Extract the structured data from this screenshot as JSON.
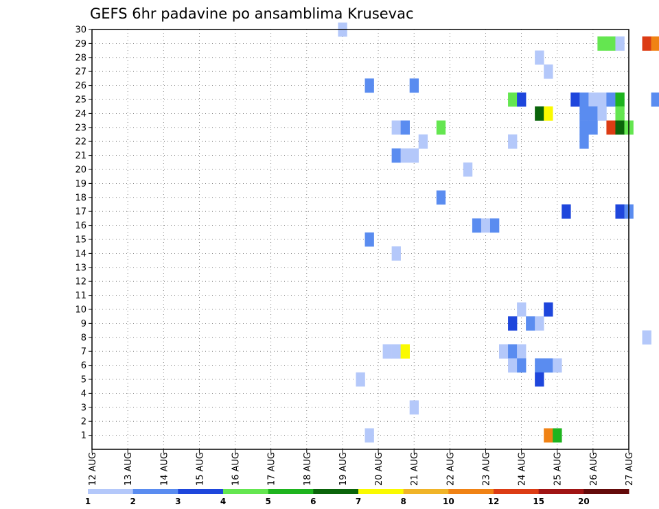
{
  "chart_data": {
    "type": "heatmap",
    "title": "GEFS 6hr padavine po ansamblima Krusevac",
    "xlabel": "",
    "ylabel": "",
    "x_tick_labels": [
      "12 AUG",
      "13 AUG",
      "14 AUG",
      "15 AUG",
      "16 AUG",
      "17 AUG",
      "18 AUG",
      "19 AUG",
      "20 AUG",
      "21 AUG",
      "22 AUG",
      "23 AUG",
      "24 AUG",
      "25 AUG",
      "26 AUG",
      "27 AUG"
    ],
    "y_tick_labels": [
      "1",
      "2",
      "3",
      "4",
      "5",
      "6",
      "7",
      "8",
      "9",
      "10",
      "11",
      "12",
      "13",
      "14",
      "15",
      "16",
      "17",
      "18",
      "19",
      "20",
      "21",
      "22",
      "23",
      "24",
      "25",
      "26",
      "27",
      "28",
      "29",
      "30"
    ],
    "x_range_days": [
      12,
      27
    ],
    "y_range": [
      0,
      30
    ],
    "grid": true,
    "colorbar": {
      "tick_labels": [
        "1",
        "2",
        "3",
        "4",
        "5",
        "6",
        "7",
        "8",
        "10",
        "12",
        "15",
        "20"
      ],
      "colors": [
        "#b4c8fa",
        "#5a8cf0",
        "#1e46dc",
        "#64e650",
        "#1eb41e",
        "#0a640a",
        "#fafa00",
        "#f0b428",
        "#f08214",
        "#dc3c14",
        "#a01414",
        "#640a0a"
      ]
    },
    "cells": [
      {
        "member": 30,
        "day": 19.0,
        "c": 0
      },
      {
        "member": 29,
        "day": 26.25,
        "c": 3
      },
      {
        "member": 29,
        "day": 26.5,
        "c": 3
      },
      {
        "member": 29,
        "day": 26.75,
        "c": 0
      },
      {
        "member": 29,
        "day": 27.5,
        "c": 9
      },
      {
        "member": 29,
        "day": 27.75,
        "c": 8
      },
      {
        "member": 28,
        "day": 24.5,
        "c": 0
      },
      {
        "member": 27,
        "day": 24.75,
        "c": 0
      },
      {
        "member": 26,
        "day": 19.75,
        "c": 1
      },
      {
        "member": 26,
        "day": 21.0,
        "c": 1
      },
      {
        "member": 25,
        "day": 23.75,
        "c": 3
      },
      {
        "member": 25,
        "day": 24.0,
        "c": 2
      },
      {
        "member": 25,
        "day": 25.5,
        "c": 2
      },
      {
        "member": 25,
        "day": 25.75,
        "c": 1
      },
      {
        "member": 25,
        "day": 26.0,
        "c": 0
      },
      {
        "member": 25,
        "day": 26.25,
        "c": 0
      },
      {
        "member": 25,
        "day": 26.5,
        "c": 1
      },
      {
        "member": 25,
        "day": 26.75,
        "c": 4
      },
      {
        "member": 25,
        "day": 27.75,
        "c": 1
      },
      {
        "member": 24,
        "day": 24.5,
        "c": 5
      },
      {
        "member": 24,
        "day": 24.75,
        "c": 6
      },
      {
        "member": 24,
        "day": 25.75,
        "c": 1
      },
      {
        "member": 24,
        "day": 26.0,
        "c": 1
      },
      {
        "member": 24,
        "day": 26.25,
        "c": 0
      },
      {
        "member": 24,
        "day": 26.75,
        "c": 3
      },
      {
        "member": 23,
        "day": 20.5,
        "c": 0
      },
      {
        "member": 23,
        "day": 20.75,
        "c": 1
      },
      {
        "member": 23,
        "day": 21.75,
        "c": 3
      },
      {
        "member": 23,
        "day": 25.75,
        "c": 1
      },
      {
        "member": 23,
        "day": 26.0,
        "c": 1
      },
      {
        "member": 23,
        "day": 26.5,
        "c": 9
      },
      {
        "member": 23,
        "day": 26.75,
        "c": 5
      },
      {
        "member": 23,
        "day": 27.0,
        "c": 3
      },
      {
        "member": 22,
        "day": 21.25,
        "c": 0
      },
      {
        "member": 22,
        "day": 23.75,
        "c": 0
      },
      {
        "member": 22,
        "day": 25.75,
        "c": 1
      },
      {
        "member": 21,
        "day": 20.5,
        "c": 1
      },
      {
        "member": 21,
        "day": 20.75,
        "c": 0
      },
      {
        "member": 21,
        "day": 21.0,
        "c": 0
      },
      {
        "member": 20,
        "day": 22.5,
        "c": 0
      },
      {
        "member": 18,
        "day": 21.75,
        "c": 1
      },
      {
        "member": 17,
        "day": 25.25,
        "c": 2
      },
      {
        "member": 17,
        "day": 26.75,
        "c": 2
      },
      {
        "member": 17,
        "day": 27.0,
        "c": 1
      },
      {
        "member": 16,
        "day": 22.75,
        "c": 1
      },
      {
        "member": 16,
        "day": 23.0,
        "c": 0
      },
      {
        "member": 16,
        "day": 23.25,
        "c": 1
      },
      {
        "member": 15,
        "day": 19.75,
        "c": 1
      },
      {
        "member": 14,
        "day": 20.5,
        "c": 0
      },
      {
        "member": 10,
        "day": 24.0,
        "c": 0
      },
      {
        "member": 10,
        "day": 24.75,
        "c": 2
      },
      {
        "member": 9,
        "day": 23.75,
        "c": 2
      },
      {
        "member": 9,
        "day": 24.25,
        "c": 1
      },
      {
        "member": 9,
        "day": 24.5,
        "c": 0
      },
      {
        "member": 8,
        "day": 27.5,
        "c": 0
      },
      {
        "member": 7,
        "day": 20.25,
        "c": 0
      },
      {
        "member": 7,
        "day": 20.5,
        "c": 0
      },
      {
        "member": 7,
        "day": 20.75,
        "c": 6
      },
      {
        "member": 7,
        "day": 23.5,
        "c": 0
      },
      {
        "member": 7,
        "day": 23.75,
        "c": 1
      },
      {
        "member": 7,
        "day": 24.0,
        "c": 0
      },
      {
        "member": 6,
        "day": 23.75,
        "c": 0
      },
      {
        "member": 6,
        "day": 24.0,
        "c": 1
      },
      {
        "member": 6,
        "day": 24.5,
        "c": 1
      },
      {
        "member": 6,
        "day": 24.75,
        "c": 1
      },
      {
        "member": 6,
        "day": 25.0,
        "c": 0
      },
      {
        "member": 5,
        "day": 19.5,
        "c": 0
      },
      {
        "member": 5,
        "day": 24.5,
        "c": 2
      },
      {
        "member": 3,
        "day": 21.0,
        "c": 0
      },
      {
        "member": 1,
        "day": 19.75,
        "c": 0
      },
      {
        "member": 1,
        "day": 24.75,
        "c": 8
      },
      {
        "member": 1,
        "day": 25.0,
        "c": 4
      }
    ]
  }
}
